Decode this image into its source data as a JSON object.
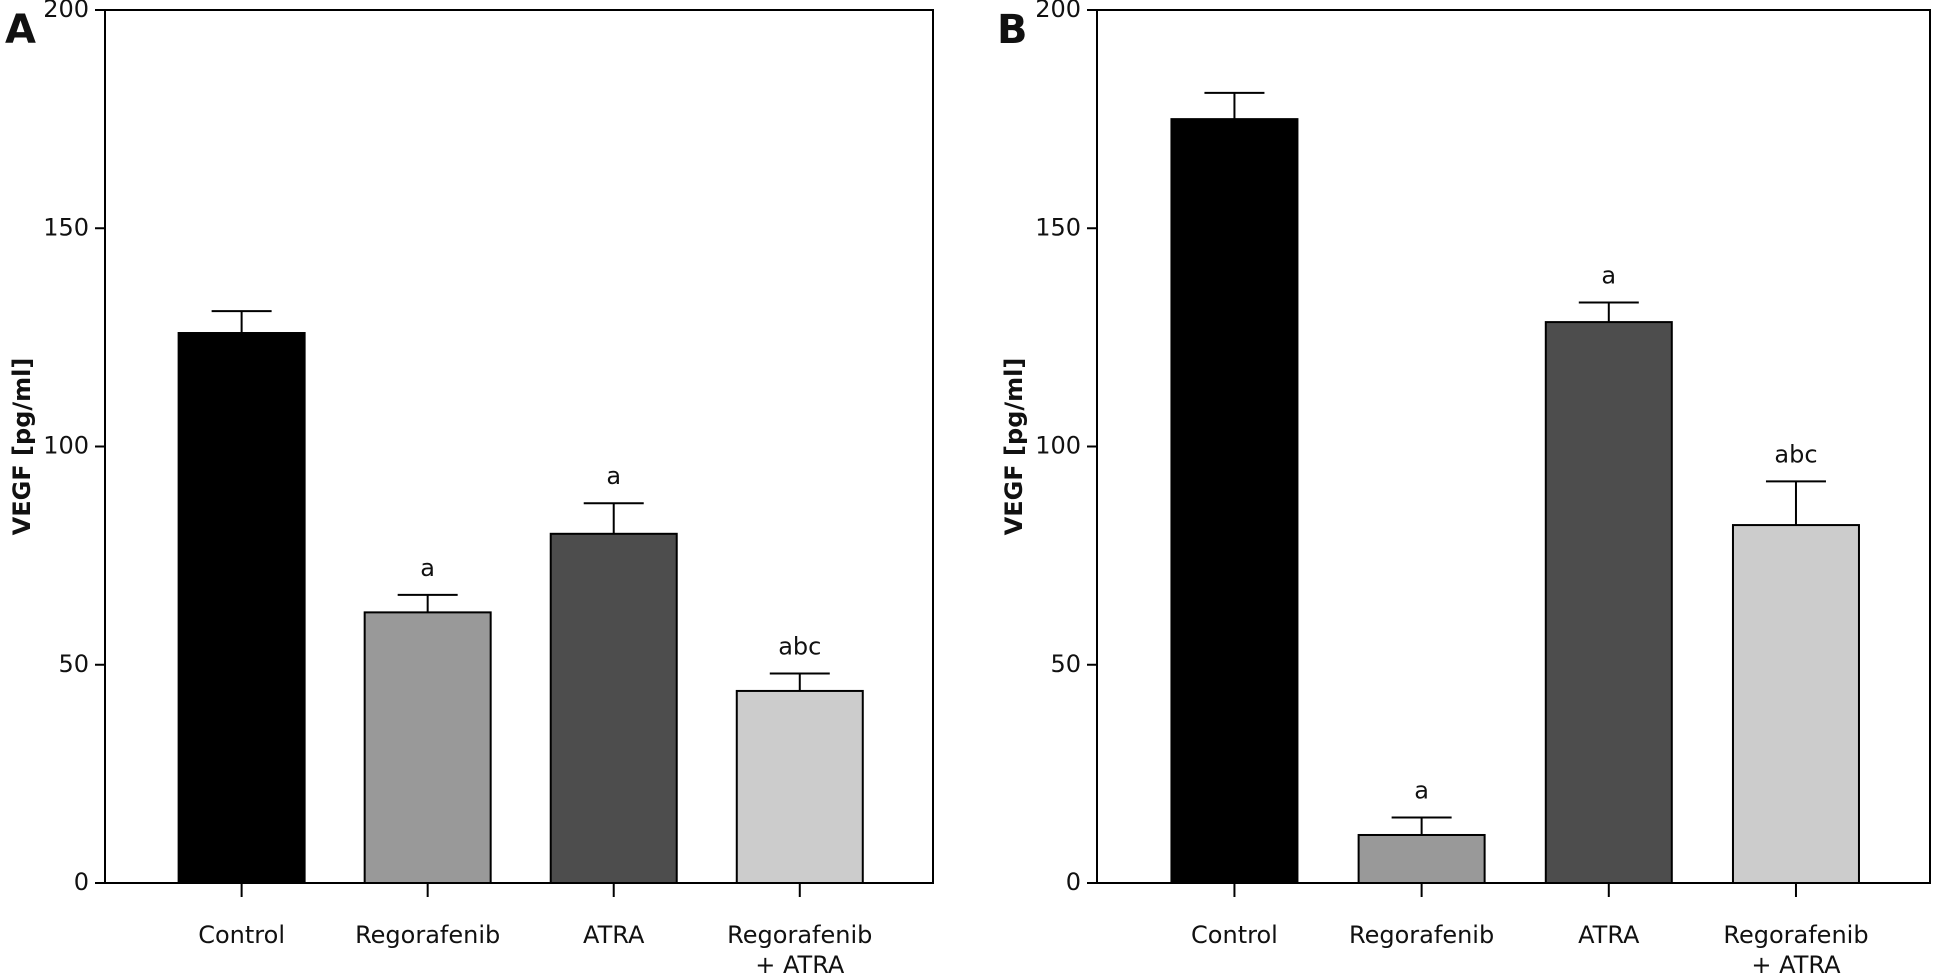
{
  "chart_data": [
    {
      "type": "bar",
      "panel": "A",
      "y_label": "VEGF [pg/ml]",
      "categories": [
        "Control",
        "Regorafenib",
        "ATRA",
        "Regorafenib\n+ ATRA"
      ],
      "values": [
        126,
        62,
        80,
        44
      ],
      "errors": [
        5,
        4,
        7,
        4
      ],
      "annotations": [
        null,
        "a",
        "a",
        "abc"
      ],
      "colors": [
        "#000000",
        "#999999",
        "#4d4d4d",
        "#cccccc"
      ],
      "ylim": [
        0,
        200
      ],
      "yticks": [
        0,
        50,
        100,
        150,
        200
      ]
    },
    {
      "type": "bar",
      "panel": "B",
      "y_label": "VEGF [pg/ml]",
      "categories": [
        "Control",
        "Regorafenib",
        "ATRA",
        "Regorafenib\n+ ATRA"
      ],
      "values": [
        175,
        11,
        128.5,
        82
      ],
      "errors": [
        6,
        4,
        4.5,
        10
      ],
      "annotations": [
        null,
        "a",
        "a",
        "abc"
      ],
      "colors": [
        "#000000",
        "#999999",
        "#4d4d4d",
        "#cccccc"
      ],
      "ylim": [
        0,
        200
      ],
      "yticks": [
        0,
        50,
        100,
        150,
        200
      ]
    }
  ]
}
